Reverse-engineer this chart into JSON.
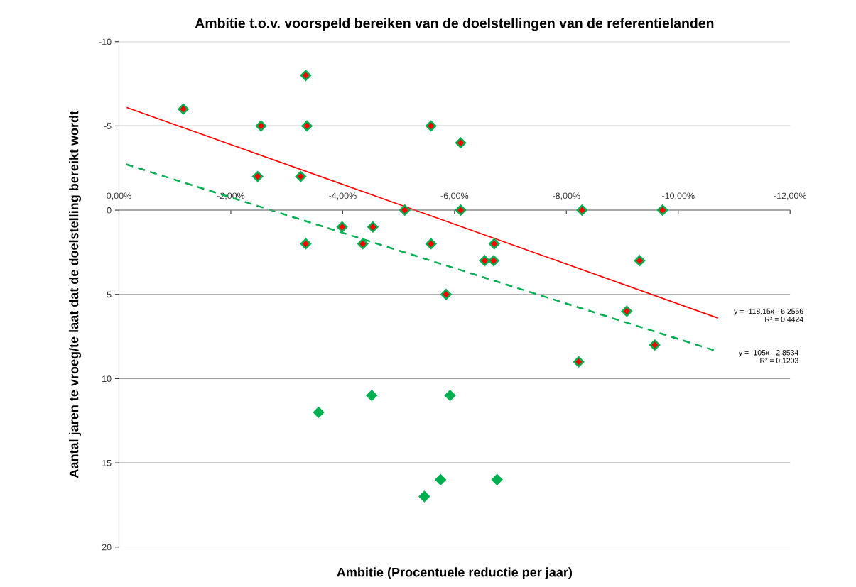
{
  "chart_data": {
    "type": "scatter",
    "title": "Ambitie t.o.v. voorspeld bereiken van de doelstellingen van de referentielanden",
    "xlabel": "Ambitie (Procentuele reductie per jaar)",
    "ylabel": "Aantal jaren te vroeg/te laat dat de doelstelling bereikt wordt",
    "xlim": [
      0,
      -12
    ],
    "xticks": [
      {
        "value": 0,
        "label": "0,00%"
      },
      {
        "value": -2,
        "label": "-2,00%"
      },
      {
        "value": -4,
        "label": "-4,00%"
      },
      {
        "value": -6,
        "label": "-6,00%"
      },
      {
        "value": -8,
        "label": "-8,00%"
      },
      {
        "value": -10,
        "label": "-10,00%"
      },
      {
        "value": -12,
        "label": "-12,00%"
      }
    ],
    "ylim": [
      20,
      -10
    ],
    "yticks": [
      -10,
      -5,
      0,
      5,
      10,
      15,
      20
    ],
    "grid": "y",
    "marker": "diamond",
    "series": [
      {
        "color": "#00b050",
        "x": [
          -1.15,
          -2.54,
          -3.34,
          -3.36,
          -2.48,
          -3.25,
          -5.58,
          -6.11,
          -5.11,
          -6.11,
          -8.28,
          -9.72,
          -3.99,
          -4.54,
          -3.34,
          -4.36,
          -5.58,
          -6.71,
          -6.54,
          -6.7,
          -9.31,
          -5.85,
          -9.08,
          -9.58,
          -8.22,
          -3.57,
          -4.52,
          -5.92,
          -5.46,
          -5.75,
          -6.76
        ],
        "values": [
          -6,
          -5,
          -8,
          -5,
          -2,
          -2,
          -5,
          -4,
          0,
          0,
          0,
          0,
          1,
          1,
          2,
          2,
          2,
          2,
          3,
          3,
          3,
          5,
          6,
          8,
          9,
          12,
          11,
          11,
          17,
          16,
          16
        ]
      },
      {
        "color": "#ff0000",
        "x": [
          -1.15,
          -2.54,
          -3.34,
          -3.36,
          -2.48,
          -3.25,
          -5.58,
          -6.11,
          -5.11,
          -6.11,
          -8.28,
          -9.72,
          -3.99,
          -4.54,
          -3.34,
          -4.36,
          -5.58,
          -6.71,
          -6.54,
          -6.7,
          -9.31,
          -5.85,
          -9.08,
          -9.58,
          -8.22
        ],
        "values": [
          -6,
          -5,
          -8,
          -5,
          -2,
          -2,
          -5,
          -4,
          0,
          0,
          0,
          0,
          1,
          1,
          2,
          2,
          2,
          2,
          3,
          3,
          3,
          5,
          6,
          8,
          9
        ]
      },
      {
        "type": "line",
        "color": "#ff0000",
        "marker": "none",
        "line_style": "solid",
        "x": [
          -0.15,
          -10.7
        ],
        "values": [
          -6.08,
          6.39
        ]
      },
      {
        "type": "line",
        "color": "#00b050",
        "marker": "none",
        "line_style": "dashed",
        "x": [
          -0.13,
          -10.7
        ],
        "values": [
          -2.72,
          8.38
        ]
      }
    ],
    "annotations": [
      "y = -118,15x - 6,2556\nR² = 0,4424",
      "y = -105x - 2,8534\nR² = 0,1203"
    ]
  }
}
